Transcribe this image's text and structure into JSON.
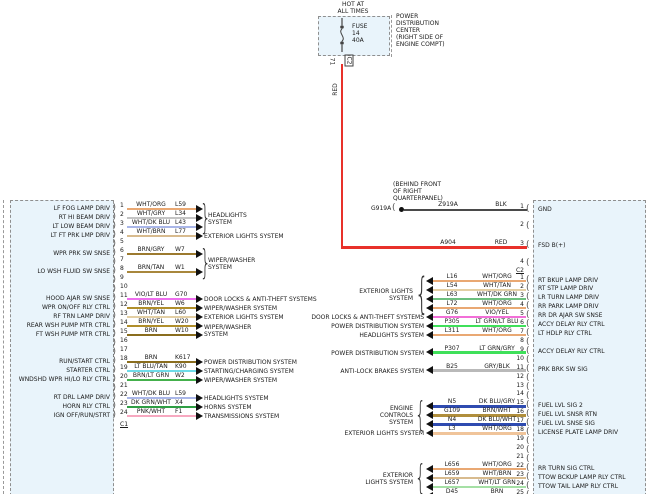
{
  "title_block": {
    "hot_line1": "HOT AT",
    "hot_line2": "ALL TIMES",
    "fuse_name": "FUSE",
    "fuse_number": "14",
    "fuse_rating": "40A",
    "pdc_lines": [
      "POWER",
      "DISTRIBUTION",
      "CENTER",
      "(RIGHT SIDE OF",
      "ENGINE COMPT)"
    ],
    "fuse_out_pin": "71",
    "fuse_out_connector": "C2"
  },
  "feed_wire": {
    "vertical_label": "RED",
    "circuit": "A904",
    "color": "RED",
    "hex": "#E8312A"
  },
  "ground": {
    "location_lines": [
      "(BEHIND FRONT",
      "OF RIGHT",
      "QUARTERPANEL)"
    ],
    "name": "G919A",
    "circuit": "Z919A",
    "color": "BLK",
    "hex": "#4A4A4A"
  },
  "left_module": {
    "connector": "C1",
    "pins": [
      {
        "pin": "1",
        "label": "LF FOG LAMP DRIV",
        "color": "WHT/ORG",
        "circuit": "L59",
        "hex": "#E9A873"
      },
      {
        "pin": "2",
        "label": "RT HI BEAM DRIV",
        "color": "WHT/GRY",
        "circuit": "L34",
        "hex": "#C4C4C4"
      },
      {
        "pin": "3",
        "label": "LT LOW BEAM DRIV",
        "color": "WHT/DK BLU",
        "circuit": "L43",
        "hex": "#A9B6E8"
      },
      {
        "pin": "4",
        "label": "LT FT PRK LMP DRIV",
        "color": "WHT/BRN",
        "circuit": "L77",
        "hex": "#D8BB8E"
      },
      {
        "pin": "5"
      },
      {
        "pin": "6",
        "label": "WPR PRK SW SNSE",
        "color": "BRN/GRY",
        "circuit": "W7",
        "hex": "#9C7A2F"
      },
      {
        "pin": "7"
      },
      {
        "pin": "8",
        "label": "LO WSH FLUID SW SNSE",
        "color": "BRN/TAN",
        "circuit": "W1",
        "hex": "#A8873C"
      },
      {
        "pin": "9"
      },
      {
        "pin": "10"
      },
      {
        "pin": "11",
        "label": "HOOD AJAR SW SNSE",
        "color": "VIO/LT BLU",
        "circuit": "G70",
        "hex": "#EE6FEE"
      },
      {
        "pin": "12",
        "label": "WPR ON/OFF RLY CTRL",
        "color": "BRN/YEL",
        "circuit": "W6",
        "hex": "#B08E2A"
      },
      {
        "pin": "13",
        "label": "RF TRN LAMP DRIV",
        "color": "WHT/TAN",
        "circuit": "L60",
        "hex": "#E3CFA4"
      },
      {
        "pin": "14",
        "label": "REAR WSH PUMP MTR CTRL",
        "color": "BRN/YEL",
        "circuit": "W20",
        "hex": "#B08E2A"
      },
      {
        "pin": "15",
        "label": "FT WSH PUMP MTR CTRL",
        "color": "BRN",
        "circuit": "W10",
        "hex": "#8A6D1E"
      },
      {
        "pin": "16"
      },
      {
        "pin": "17"
      },
      {
        "pin": "18",
        "label": "RUN/START CTRL",
        "color": "BRN",
        "circuit": "K617",
        "hex": "#8A6D1E"
      },
      {
        "pin": "19",
        "label": "STARTER CTRL",
        "color": "LT BLU/TAN",
        "circuit": "K90",
        "hex": "#6FDBE8"
      },
      {
        "pin": "20",
        "label": "WNDSHD WPR HI/LO RLY CTRL",
        "color": "BRN/LT GRN",
        "circuit": "W2",
        "hex": "#44B04C"
      },
      {
        "pin": "21"
      },
      {
        "pin": "22",
        "label": "RT DRL LAMP DRIV",
        "color": "WHT/DK BLU",
        "circuit": "L59",
        "hex": "#A9B6E8"
      },
      {
        "pin": "23",
        "label": "HORN RLY CTRL",
        "color": "DK GRN/WHT",
        "circuit": "X4",
        "hex": "#2F9E44"
      },
      {
        "pin": "24",
        "label": "IGN OFF/RUN/STRT",
        "color": "PNK/WHT",
        "circuit": "F1",
        "hex": "#F7A8C0"
      }
    ],
    "systems": [
      {
        "from": 1,
        "to": 3,
        "lines": [
          "HEADLIGHTS",
          "SYSTEM"
        ],
        "brace": true
      },
      {
        "from": 4,
        "to": 4,
        "lines": [
          "EXTERIOR LIGHTS SYSTEM"
        ]
      },
      {
        "from": 6,
        "to": 8,
        "lines": [
          "WIPER/WASHER",
          "SYSTEM"
        ],
        "brace": true
      },
      {
        "from": 11,
        "to": 11,
        "lines": [
          "DOOR LOCKS & ANTI-THEFT SYSTEMS"
        ]
      },
      {
        "from": 12,
        "to": 12,
        "lines": [
          "WIPER/WASHER SYSTEM"
        ]
      },
      {
        "from": 13,
        "to": 13,
        "lines": [
          "EXTERIOR LIGHTS SYSTEM"
        ]
      },
      {
        "from": 14,
        "to": 15,
        "lines": [
          "WIPER/WASHER",
          "SYSTEM"
        ]
      },
      {
        "from": 18,
        "to": 18,
        "lines": [
          "POWER DISTRIBUTION SYSTEM"
        ]
      },
      {
        "from": 19,
        "to": 19,
        "lines": [
          "STARTING/CHARGING SYSTEM"
        ]
      },
      {
        "from": 20,
        "to": 20,
        "lines": [
          "WIPER/WASHER SYSTEM"
        ]
      },
      {
        "from": 22,
        "to": 22,
        "lines": [
          "HEADLIGHTS SYSTEM"
        ]
      },
      {
        "from": 23,
        "to": 23,
        "lines": [
          "HORNS SYSTEM"
        ]
      },
      {
        "from": 24,
        "to": 24,
        "lines": [
          "TRANSMISSIONS SYSTEM"
        ]
      }
    ]
  },
  "right_module": {
    "connector": "C2",
    "top_pins": [
      {
        "pin": "1",
        "label": "GND"
      },
      {
        "pin": "2"
      },
      {
        "pin": "3",
        "label": "FSD B(+)"
      },
      {
        "pin": "4"
      }
    ],
    "pins": [
      {
        "pin": "1",
        "label": "RT BKUP LAMP DRIV",
        "circuit": "L16",
        "color": "WHT/ORG",
        "hex": "#E9A873"
      },
      {
        "pin": "2",
        "label": "RT STP LAMP DRIV",
        "circuit": "L54",
        "color": "WHT/TAN",
        "hex": "#E3CFA4"
      },
      {
        "pin": "3",
        "label": "LR TURN LAMP DRIV",
        "circuit": "L63",
        "color": "WHT/DK GRN",
        "hex": "#6CBF7E"
      },
      {
        "pin": "4",
        "label": "RR PARK LAMP DRIV",
        "circuit": "L72",
        "color": "WHT/ORG",
        "hex": "#E9A873"
      },
      {
        "pin": "5",
        "label": "RR DR AJAR SW SNSE",
        "circuit": "G76",
        "color": "VIO/YEL",
        "hex": "#F26FD8"
      },
      {
        "pin": "6",
        "label": "ACCY DELAY RLY CTRL",
        "circuit": "P305",
        "color": "LT GRN/LT BLU",
        "hex": "#3FE05A"
      },
      {
        "pin": "7",
        "label": "LT HDLP RLY CTRL",
        "circuit": "L311",
        "color": "WHT/ORG",
        "hex": "#E9A873"
      },
      {
        "pin": "8"
      },
      {
        "pin": "9",
        "label": "ACCY DELAY RLY CTRL",
        "circuit": "P307",
        "color": "LT GRN/GRY",
        "hex": "#3FE05A"
      },
      {
        "pin": "10"
      },
      {
        "pin": "11",
        "label": "PRK BRK SW SIG",
        "circuit": "B25",
        "color": "GRY/BLK",
        "hex": "#B9B9B9"
      },
      {
        "pin": "12"
      },
      {
        "pin": "13"
      },
      {
        "pin": "14"
      },
      {
        "pin": "15",
        "label": "FUEL LVL SIG 2",
        "circuit": "N5",
        "color": "DK BLU/GRY",
        "hex": "#2F4BB0"
      },
      {
        "pin": "16",
        "label": "FUEL LVL SNSR RTN",
        "circuit": "G109",
        "color": "BRN/WHT",
        "hex": "#B08E3C"
      },
      {
        "pin": "17",
        "label": "FUEL LVL SNSE SIG",
        "circuit": "N4",
        "color": "DK BLU/WHT",
        "hex": "#2F4BB0"
      },
      {
        "pin": "18",
        "label": "LICENSE PLATE LAMP DRIV",
        "circuit": "L3",
        "color": "WHT/ORG",
        "hex": "#F0C49A"
      },
      {
        "pin": "19"
      },
      {
        "pin": "20"
      },
      {
        "pin": "21"
      },
      {
        "pin": "22",
        "label": "RR TURN SIG CTRL",
        "circuit": "L656",
        "color": "WHT/ORG",
        "hex": "#E9A873"
      },
      {
        "pin": "23",
        "label": "TTOW BCKUP LAMP RLY CTRL",
        "circuit": "L659",
        "color": "WHT/BRN",
        "hex": "#D8BB8E"
      },
      {
        "pin": "24",
        "label": "TTOW TAIL LAMP RLY CTRL",
        "circuit": "L657",
        "color": "WHT/LT GRN",
        "hex": "#A5E0A5"
      },
      {
        "pin": "25",
        "label": "",
        "circuit": "D45",
        "color": "BRN",
        "hex": "#8A6D1E"
      }
    ],
    "systems": [
      {
        "from": 1,
        "to": 4,
        "lines": [
          "EXTERIOR LIGHTS",
          "SYSTEM"
        ],
        "brace": true
      },
      {
        "from": 5,
        "to": 5,
        "lines": [
          "DOOR LOCKS & ANTI-THEFT SYSTEMS"
        ]
      },
      {
        "from": 6,
        "to": 6,
        "lines": [
          "POWER DISTRIBUTION SYSTEM"
        ]
      },
      {
        "from": 7,
        "to": 7,
        "lines": [
          "HEADLIGHTS SYSTEM"
        ]
      },
      {
        "from": 9,
        "to": 9,
        "lines": [
          "POWER DISTRIBUTION SYSTEM"
        ]
      },
      {
        "from": 11,
        "to": 11,
        "lines": [
          "ANTI-LOCK BRAKES SYSTEM"
        ]
      },
      {
        "from": 15,
        "to": 17,
        "lines": [
          "ENGINE",
          "CONTROLS",
          "SYSTEM"
        ],
        "brace": true
      },
      {
        "from": 18,
        "to": 18,
        "lines": [
          "EXTERIOR LIGHTS SYSTEM"
        ]
      },
      {
        "from": 22,
        "to": 24,
        "lines": [
          "EXTERIOR",
          "LIGHTS SYSTEM"
        ],
        "brace": true
      }
    ]
  }
}
